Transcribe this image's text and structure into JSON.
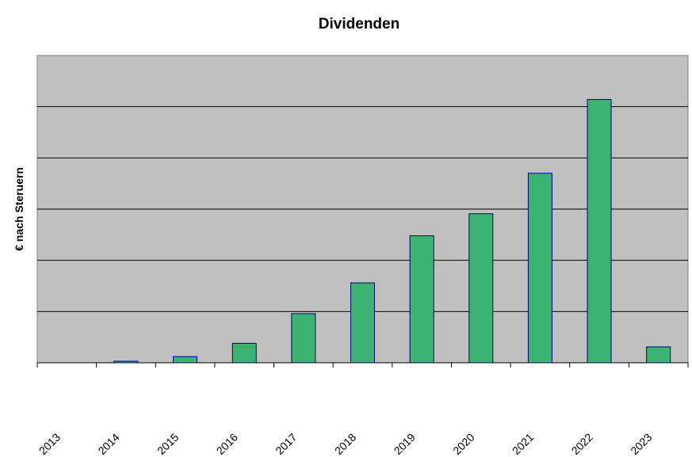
{
  "chart_data": {
    "type": "bar",
    "title": "Dividenden",
    "xlabel": "",
    "ylabel": "€ nach Steruern",
    "categories": [
      "2013",
      "2014",
      "2015",
      "2016",
      "2017",
      "2018",
      "2019",
      "2020",
      "2021",
      "2022",
      "2023"
    ],
    "values": [
      0,
      0.03,
      0.12,
      0.38,
      0.96,
      1.56,
      2.48,
      2.91,
      3.7,
      5.14,
      0.31
    ],
    "value_units": "gridline intervals (y tick labels not shown)",
    "ylim": [
      0,
      6
    ],
    "grid": true,
    "legend": "none",
    "colors": {
      "bar": "#3cb371",
      "bar_border": "#000080",
      "plot_bg": "#c0c0c0",
      "grid": "#000000"
    }
  }
}
